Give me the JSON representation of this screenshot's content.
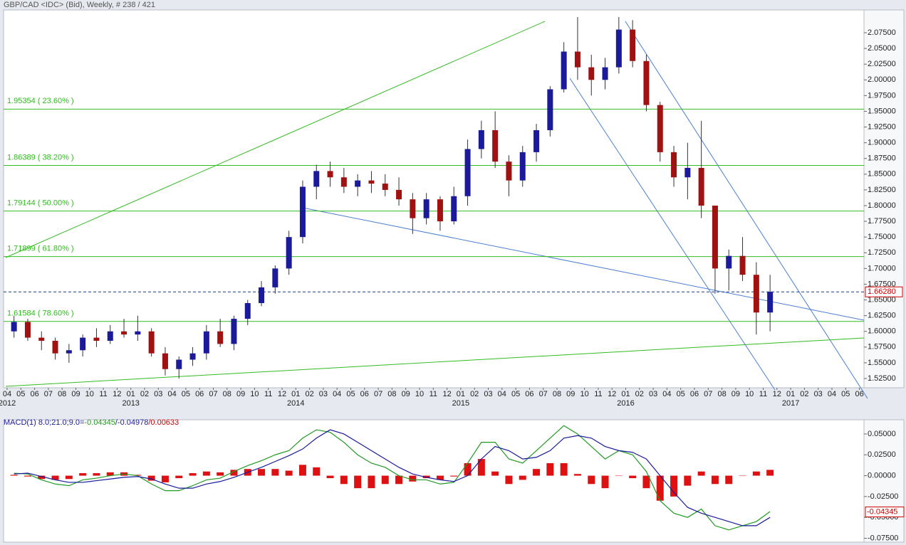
{
  "chart_data": {
    "type": "candlestick",
    "title": "GBP/CAD <IDC> (Bid), Weekly, # 238 / 421",
    "up_color": "#1a1a9a",
    "down_color": "#a01212",
    "months": [
      "04",
      "05",
      "06",
      "07",
      "08",
      "09",
      "10",
      "11",
      "12",
      "01",
      "02",
      "03",
      "04",
      "05",
      "06",
      "07",
      "08",
      "09",
      "10",
      "11",
      "12",
      "01",
      "02",
      "03",
      "04",
      "05",
      "06",
      "07",
      "08",
      "09",
      "10",
      "11",
      "12",
      "01",
      "02",
      "03",
      "04",
      "05",
      "06",
      "07",
      "08",
      "09",
      "10",
      "11",
      "12",
      "01",
      "02",
      "03",
      "04",
      "05",
      "06",
      "07",
      "08",
      "09",
      "10",
      "11",
      "12",
      "01",
      "02",
      "03",
      "04",
      "05",
      "06"
    ],
    "years": [
      "2012",
      "2013",
      "2014",
      "2015",
      "2016",
      "2017"
    ],
    "candles": [
      [
        1.6,
        1.625,
        1.59,
        1.615
      ],
      [
        1.615,
        1.62,
        1.585,
        1.59
      ],
      [
        1.59,
        1.6,
        1.57,
        1.585
      ],
      [
        1.585,
        1.59,
        1.555,
        1.565
      ],
      [
        1.565,
        1.58,
        1.55,
        1.57
      ],
      [
        1.57,
        1.595,
        1.56,
        1.59
      ],
      [
        1.59,
        1.605,
        1.575,
        1.585
      ],
      [
        1.585,
        1.61,
        1.58,
        1.6
      ],
      [
        1.6,
        1.62,
        1.59,
        1.595
      ],
      [
        1.595,
        1.625,
        1.585,
        1.6
      ],
      [
        1.6,
        1.605,
        1.56,
        1.565
      ],
      [
        1.565,
        1.575,
        1.53,
        1.54
      ],
      [
        1.54,
        1.56,
        1.525,
        1.555
      ],
      [
        1.555,
        1.575,
        1.545,
        1.565
      ],
      [
        1.565,
        1.61,
        1.555,
        1.6
      ],
      [
        1.6,
        1.62,
        1.575,
        1.58
      ],
      [
        1.58,
        1.625,
        1.57,
        1.62
      ],
      [
        1.62,
        1.65,
        1.61,
        1.645
      ],
      [
        1.645,
        1.68,
        1.64,
        1.67
      ],
      [
        1.67,
        1.705,
        1.66,
        1.7
      ],
      [
        1.7,
        1.76,
        1.69,
        1.75
      ],
      [
        1.75,
        1.84,
        1.74,
        1.83
      ],
      [
        1.83,
        1.865,
        1.81,
        1.855
      ],
      [
        1.855,
        1.87,
        1.83,
        1.845
      ],
      [
        1.845,
        1.86,
        1.82,
        1.83
      ],
      [
        1.83,
        1.85,
        1.815,
        1.84
      ],
      [
        1.84,
        1.855,
        1.82,
        1.835
      ],
      [
        1.835,
        1.85,
        1.815,
        1.825
      ],
      [
        1.825,
        1.845,
        1.8,
        1.81
      ],
      [
        1.81,
        1.82,
        1.755,
        1.78
      ],
      [
        1.78,
        1.82,
        1.77,
        1.81
      ],
      [
        1.81,
        1.815,
        1.76,
        1.775
      ],
      [
        1.775,
        1.83,
        1.77,
        1.815
      ],
      [
        1.815,
        1.905,
        1.8,
        1.89
      ],
      [
        1.89,
        1.935,
        1.875,
        1.92
      ],
      [
        1.92,
        1.95,
        1.86,
        1.87
      ],
      [
        1.87,
        1.88,
        1.815,
        1.84
      ],
      [
        1.84,
        1.895,
        1.83,
        1.885
      ],
      [
        1.885,
        1.93,
        1.87,
        1.92
      ],
      [
        1.92,
        1.99,
        1.91,
        1.985
      ],
      [
        1.985,
        2.06,
        1.98,
        2.045
      ],
      [
        2.045,
        2.1,
        2.0,
        2.02
      ],
      [
        2.02,
        2.04,
        1.975,
        2.0
      ],
      [
        2.0,
        2.035,
        1.985,
        2.02
      ],
      [
        2.02,
        2.1,
        2.01,
        2.08
      ],
      [
        2.08,
        2.095,
        2.02,
        2.03
      ],
      [
        2.03,
        2.04,
        1.95,
        1.96
      ],
      [
        1.96,
        1.965,
        1.87,
        1.885
      ],
      [
        1.885,
        1.895,
        1.83,
        1.845
      ],
      [
        1.845,
        1.9,
        1.81,
        1.86
      ],
      [
        1.86,
        1.935,
        1.78,
        1.8
      ],
      [
        1.8,
        1.8,
        1.66,
        1.7
      ],
      [
        1.7,
        1.73,
        1.665,
        1.72
      ],
      [
        1.72,
        1.75,
        1.68,
        1.69
      ],
      [
        1.69,
        1.71,
        1.595,
        1.63
      ],
      [
        1.63,
        1.69,
        1.6,
        1.663
      ]
    ],
    "ylim": [
      1.5103,
      2.1112
    ],
    "yticks": [
      {
        "value": 1.525,
        "label": "1.52500"
      },
      {
        "value": 1.55,
        "label": "1.55000"
      },
      {
        "value": 1.575,
        "label": "1.57500"
      },
      {
        "value": 1.6,
        "label": "1.60000"
      },
      {
        "value": 1.625,
        "label": "1.62500"
      },
      {
        "value": 1.65,
        "label": "1.65000"
      },
      {
        "value": 1.675,
        "label": "1.67500"
      },
      {
        "value": 1.7,
        "label": "1.70000"
      },
      {
        "value": 1.725,
        "label": "1.72500"
      },
      {
        "value": 1.75,
        "label": "1.75000"
      },
      {
        "value": 1.775,
        "label": "1.77500"
      },
      {
        "value": 1.8,
        "label": "1.80000"
      },
      {
        "value": 1.825,
        "label": "1.82500"
      },
      {
        "value": 1.85,
        "label": "1.85000"
      },
      {
        "value": 1.875,
        "label": "1.87500"
      },
      {
        "value": 1.9,
        "label": "1.90000"
      },
      {
        "value": 1.925,
        "label": "1.92500"
      },
      {
        "value": 1.95,
        "label": "1.95000"
      },
      {
        "value": 1.975,
        "label": "1.97500"
      },
      {
        "value": 2.0,
        "label": "2.00000"
      },
      {
        "value": 2.025,
        "label": "2.02500"
      },
      {
        "value": 2.05,
        "label": "2.05000"
      },
      {
        "value": 2.075,
        "label": "2.07500"
      }
    ],
    "fib_color": "#33bb22",
    "fib_levels": [
      {
        "value": 1.95354,
        "label": "1.95354 ( 23.60% )"
      },
      {
        "value": 1.86389,
        "label": "1.86389 ( 38.20% )"
      },
      {
        "value": 1.79144,
        "label": "1.79144 ( 50.00% )"
      },
      {
        "value": 1.71899,
        "label": "1.71899 ( 61.80% )"
      },
      {
        "value": 1.61584,
        "label": "1.61584 ( 78.60% )"
      }
    ],
    "current_price": {
      "value": 1.6628,
      "label": "1.66280"
    },
    "macd": {
      "title_parts": [
        "MACD(1) 8.0;21.0;9.0=",
        "-0.04345",
        "/-0.04978",
        "/0.00633"
      ],
      "title_colors": [
        "#1a1a9a",
        "#229922",
        "#1a1a9a",
        "#cc0000"
      ],
      "current": {
        "value": -0.04345,
        "label": "-0.04345"
      },
      "ylim": [
        -0.0797,
        0.067
      ],
      "yticks": [
        {
          "value": 0.05,
          "label": "0.05000"
        },
        {
          "value": 0.025,
          "label": "0.02500"
        },
        {
          "value": 0,
          "label": "0.00000"
        },
        {
          "value": -0.025,
          "label": "-0.02500"
        },
        {
          "value": -0.05,
          "label": "-0.05000"
        },
        {
          "value": -0.075,
          "label": "-0.07500"
        }
      ],
      "series": [
        {
          "name": "MACD",
          "color": "#229922",
          "values": [
            0.003,
            0.002,
            -0.005,
            -0.01,
            -0.012,
            -0.005,
            -0.003,
            0.0,
            0.002,
            0.0,
            -0.01,
            -0.018,
            -0.018,
            -0.012,
            -0.005,
            -0.003,
            0.005,
            0.012,
            0.018,
            0.025,
            0.03,
            0.045,
            0.055,
            0.052,
            0.04,
            0.025,
            0.015,
            0.01,
            0.0,
            -0.005,
            -0.005,
            -0.01,
            -0.008,
            0.015,
            0.04,
            0.04,
            0.02,
            0.015,
            0.03,
            0.045,
            0.06,
            0.05,
            0.035,
            0.02,
            0.03,
            0.025,
            0.005,
            -0.03,
            -0.045,
            -0.05,
            -0.04,
            -0.06,
            -0.065,
            -0.06,
            -0.055,
            -0.043
          ]
        },
        {
          "name": "Signal",
          "color": "#1a1a9a",
          "values": [
            0.002,
            0.003,
            -0.001,
            -0.005,
            -0.008,
            -0.008,
            -0.006,
            -0.004,
            -0.002,
            -0.001,
            -0.004,
            -0.01,
            -0.015,
            -0.015,
            -0.01,
            -0.007,
            -0.002,
            0.004,
            0.01,
            0.017,
            0.024,
            0.032,
            0.045,
            0.055,
            0.05,
            0.04,
            0.03,
            0.02,
            0.01,
            0.002,
            -0.002,
            -0.005,
            -0.007,
            0.0,
            0.02,
            0.035,
            0.03,
            0.02,
            0.022,
            0.03,
            0.045,
            0.048,
            0.045,
            0.035,
            0.03,
            0.028,
            0.02,
            0.0,
            -0.02,
            -0.038,
            -0.045,
            -0.05,
            -0.055,
            -0.06,
            -0.06,
            -0.05
          ]
        }
      ],
      "histogram": {
        "color": "#dd1111",
        "values": [
          0.001,
          -0.001,
          -0.004,
          -0.005,
          -0.004,
          0.003,
          0.003,
          0.004,
          0.004,
          0.001,
          -0.006,
          -0.008,
          -0.003,
          0.003,
          0.005,
          0.004,
          0.007,
          0.008,
          0.008,
          0.008,
          0.006,
          0.013,
          0.01,
          -0.003,
          -0.01,
          -0.015,
          -0.015,
          -0.01,
          -0.01,
          -0.007,
          -0.003,
          -0.005,
          -0.001,
          0.015,
          0.02,
          0.005,
          -0.01,
          -0.005,
          0.008,
          0.015,
          0.015,
          0.002,
          -0.01,
          -0.015,
          0.0,
          -0.003,
          -0.015,
          -0.03,
          -0.025,
          -0.012,
          0.005,
          -0.01,
          -0.01,
          0.0,
          0.005,
          0.007
        ]
      }
    }
  }
}
